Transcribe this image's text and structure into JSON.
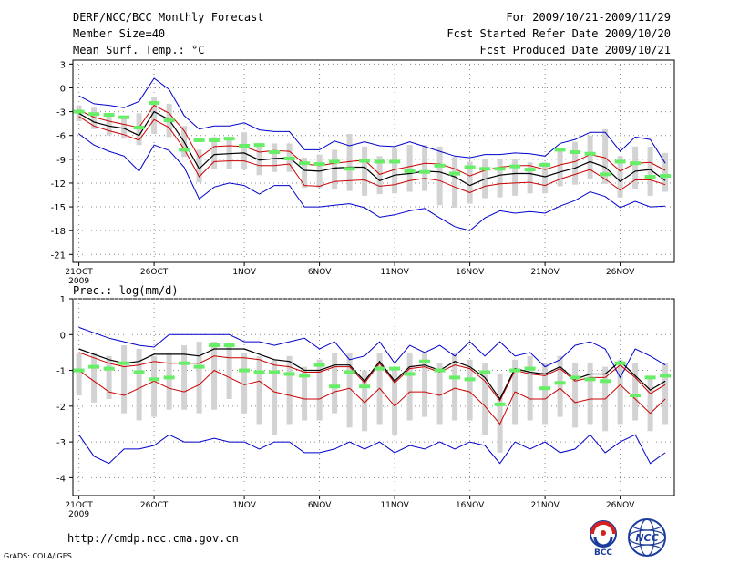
{
  "header": {
    "title": "DERF/NCC/BCC Monthly Forecast",
    "member_size": "Member Size=40",
    "variable": "Mean Surf. Temp.: °C",
    "period": "For 2009/10/21-2009/11/29",
    "started": "Fcst Started Refer Date 2009/10/20",
    "produced": "Fcst Produced Date 2009/10/21"
  },
  "footer": {
    "url": "http://cmdp.ncc.cma.gov.cn",
    "grads": "GrADS: COLA/IGES",
    "logo_left_text": "BCC",
    "logo_right_text": "NCC"
  },
  "colors": {
    "ensemble_envelope": "#0000cc",
    "ensemble_mean": "#000000",
    "climatology": "#cc0000",
    "member_range_bar": "#d3d3d3",
    "observation_marker": "#66ee66",
    "grid": "#888888"
  },
  "chart_data": [
    {
      "type": "line",
      "title": "Mean Surf. Temp.: °C",
      "xlabel": "",
      "ylabel": "°C",
      "ylim": [
        -22,
        3.5
      ],
      "yticks": [
        3,
        0,
        -3,
        -6,
        -9,
        -12,
        -15,
        -18,
        -21
      ],
      "grid": true,
      "x_ticks": [
        {
          "day": 1,
          "label": "21OCT"
        },
        {
          "day": 6,
          "label": "26OCT"
        },
        {
          "day": 12,
          "label": "1NOV"
        },
        {
          "day": 17,
          "label": "6NOV"
        },
        {
          "day": 22,
          "label": "11NOV"
        },
        {
          "day": 27,
          "label": "16NOV"
        },
        {
          "day": 32,
          "label": "21NOV"
        },
        {
          "day": 37,
          "label": "26NOV"
        }
      ],
      "year_label": "2009",
      "xlim": [
        0.6,
        40.6
      ],
      "series": [
        {
          "name": "Ensemble max",
          "style": "envelope",
          "values": [
            -1,
            -2,
            -2.2,
            -2.5,
            -1.7,
            1.2,
            -0.2,
            -3.5,
            -5.2,
            -4.8,
            -4.8,
            -4.4,
            -5.3,
            -5.5,
            -5.5,
            -7.8,
            -7.8,
            -6.7,
            -7.3,
            -6.8,
            -7.3,
            -7.4,
            -6.8,
            -7.4,
            -8,
            -8.6,
            -8.8,
            -8.4,
            -8.4,
            -8.2,
            -8.3,
            -8.6,
            -7,
            -6.5,
            -5.6,
            -5.6,
            -8,
            -6.2,
            -6.5,
            -9.5
          ]
        },
        {
          "name": "Ensemble mean",
          "style": "mean",
          "values": [
            -3.2,
            -4.3,
            -4.8,
            -5.1,
            -6,
            -3,
            -4,
            -6.8,
            -10.2,
            -8.4,
            -8.3,
            -8.2,
            -9.1,
            -8.9,
            -8.8,
            -10.4,
            -10.5,
            -10.1,
            -10,
            -10,
            -11.7,
            -11,
            -10.8,
            -10.5,
            -10.6,
            -11.2,
            -12.3,
            -11.5,
            -11,
            -10.8,
            -10.8,
            -11.2,
            -10.6,
            -10.1,
            -9.3,
            -10,
            -11.8,
            -10.5,
            -10.3,
            -11.7
          ]
        },
        {
          "name": "Climatology",
          "style": "clim",
          "values": [
            -2.8,
            -3.7,
            -4.2,
            -4.6,
            -5,
            -2.2,
            -3.2,
            -5.4,
            -8.8,
            -7.4,
            -7.3,
            -7.4,
            -8.1,
            -7.9,
            -8,
            -9.6,
            -9.8,
            -9.5,
            -9.3,
            -9.1,
            -10.9,
            -10.3,
            -9.9,
            -9.5,
            -9.6,
            -10.2,
            -11.1,
            -10.4,
            -10,
            -9.8,
            -9.8,
            -10.3,
            -9.7,
            -9.3,
            -8.4,
            -8.8,
            -10.5,
            -9.5,
            -9.4,
            -10.4
          ]
        },
        {
          "name": "Climatology lower",
          "style": "clim",
          "values": [
            -3.6,
            -4.8,
            -5.4,
            -5.9,
            -6.6,
            -4,
            -5,
            -7.7,
            -11.2,
            -9.3,
            -9.2,
            -9.2,
            -9.8,
            -9.8,
            -9.6,
            -12.3,
            -12.4,
            -11.8,
            -11.7,
            -11.6,
            -12.4,
            -12.2,
            -11.7,
            -11.4,
            -11.7,
            -12.5,
            -13.2,
            -12.4,
            -12.1,
            -12,
            -11.9,
            -12.3,
            -11.5,
            -10.9,
            -10.3,
            -11.5,
            -12.9,
            -11.6,
            -11.6,
            -12.2
          ]
        },
        {
          "name": "Ensemble min",
          "style": "envelope",
          "values": [
            -5.8,
            -7.2,
            -8,
            -8.6,
            -10.5,
            -7.2,
            -7.9,
            -10,
            -14,
            -12.5,
            -12,
            -12.3,
            -13.4,
            -12.3,
            -12.3,
            -15,
            -15,
            -14.8,
            -14.6,
            -15.1,
            -16.3,
            -16,
            -15.5,
            -15.2,
            -16.4,
            -17.5,
            -18,
            -16.4,
            -15.5,
            -15.8,
            -15.6,
            -15.8,
            -14.9,
            -14.2,
            -13.1,
            -13.7,
            -15.1,
            -14.3,
            -15,
            -14.9
          ]
        },
        {
          "name": "Member range high",
          "style": "bar_top",
          "values": [
            -2.2,
            -2.5,
            -3.2,
            -3.8,
            -3.2,
            -1.2,
            -2,
            -4.8,
            -7.8,
            -6.2,
            -6.5,
            -5.6,
            -7,
            -7,
            -7,
            -8.8,
            -8.4,
            -7.8,
            -5.8,
            -7.4,
            -8.6,
            -7.6,
            -7.2,
            -7.2,
            -7.4,
            -8.7,
            -9.3,
            -9,
            -9,
            -9,
            -9.4,
            -9.4,
            -7.7,
            -6.8,
            -6,
            -5.2,
            -8.6,
            -7.4,
            -7.4,
            -8.2
          ]
        },
        {
          "name": "Member range low",
          "style": "bar_bottom",
          "values": [
            -4.2,
            -5.2,
            -6,
            -6.4,
            -7.2,
            -5.8,
            -6.2,
            -8.7,
            -11.9,
            -10.2,
            -10.2,
            -10.3,
            -11,
            -10.6,
            -10.6,
            -12.6,
            -12.6,
            -12.8,
            -13,
            -13.6,
            -13.4,
            -13.3,
            -13.1,
            -13,
            -14.8,
            -15.1,
            -14.6,
            -13.9,
            -13.8,
            -13.6,
            -13.3,
            -13.3,
            -12.4,
            -12.2,
            -11.5,
            -12.1,
            -13.8,
            -12.8,
            -13.6,
            -13.1
          ]
        },
        {
          "name": "Observed",
          "style": "obs",
          "values": [
            -3,
            -3.3,
            -3.4,
            -3.7,
            -5,
            -1.9,
            -4.1,
            -7.8,
            -6.6,
            -6.6,
            -6.4,
            -7.3,
            -7.2,
            -8.1,
            -8.9,
            -9.5,
            -9.6,
            -9.3,
            -10.2,
            -9.2,
            -9.3,
            -9.3,
            -10.5,
            -10.6,
            -9.8,
            -10.8,
            -10,
            -10.2,
            -10.2,
            -9.9,
            -10.3,
            -9.7,
            -7.8,
            -8.1,
            -8.3,
            -10.9,
            -9.3,
            -9.5,
            -11.2,
            -11.1
          ]
        }
      ]
    },
    {
      "type": "line",
      "title": "Prec.: log(mm/d)",
      "xlabel": "",
      "ylabel": "log(mm/d)",
      "ylim": [
        -4.5,
        1
      ],
      "yticks": [
        1,
        0,
        -1,
        -2,
        -3,
        -4
      ],
      "grid": true,
      "x_ticks": [
        {
          "day": 1,
          "label": "21OCT"
        },
        {
          "day": 6,
          "label": "26OCT"
        },
        {
          "day": 12,
          "label": "1NOV"
        },
        {
          "day": 17,
          "label": "6NOV"
        },
        {
          "day": 22,
          "label": "11NOV"
        },
        {
          "day": 27,
          "label": "16NOV"
        },
        {
          "day": 32,
          "label": "21NOV"
        },
        {
          "day": 37,
          "label": "26NOV"
        }
      ],
      "year_label": "2009",
      "xlim": [
        0.6,
        40.6
      ],
      "series": [
        {
          "name": "Ensemble max",
          "style": "envelope",
          "values": [
            0.2,
            0.05,
            -0.1,
            -0.2,
            -0.3,
            -0.35,
            0,
            0,
            0,
            0,
            0,
            -0.2,
            -0.2,
            -0.3,
            -0.2,
            -0.1,
            -0.4,
            -0.2,
            -0.7,
            -0.6,
            -0.2,
            -0.8,
            -0.3,
            -0.5,
            -0.3,
            -0.6,
            -0.2,
            -0.6,
            -0.2,
            -0.6,
            -0.5,
            -0.9,
            -0.7,
            -0.3,
            -0.2,
            -0.4,
            -1.2,
            -0.4,
            -0.6,
            -0.85
          ]
        },
        {
          "name": "Ensemble mean",
          "style": "mean",
          "values": [
            -0.4,
            -0.55,
            -0.7,
            -0.8,
            -0.75,
            -0.55,
            -0.55,
            -0.55,
            -0.6,
            -0.4,
            -0.4,
            -0.4,
            -0.55,
            -0.7,
            -0.75,
            -1,
            -1,
            -0.85,
            -0.85,
            -1.3,
            -0.75,
            -1.3,
            -0.9,
            -0.85,
            -1,
            -0.75,
            -0.9,
            -1.2,
            -1.8,
            -0.95,
            -1.05,
            -1.1,
            -0.9,
            -1.25,
            -1.1,
            -1.1,
            -0.75,
            -1.15,
            -1.55,
            -1.3
          ]
        },
        {
          "name": "Climatology high",
          "style": "clim",
          "values": [
            -0.5,
            -0.65,
            -0.8,
            -0.9,
            -0.85,
            -0.75,
            -0.8,
            -0.8,
            -0.8,
            -0.6,
            -0.65,
            -0.65,
            -0.7,
            -0.85,
            -0.9,
            -1.05,
            -1.05,
            -0.9,
            -0.9,
            -1.35,
            -0.8,
            -1.35,
            -0.95,
            -0.9,
            -1.05,
            -0.85,
            -0.95,
            -1.3,
            -1.85,
            -1,
            -1.1,
            -1.15,
            -0.95,
            -1.3,
            -1.2,
            -1.2,
            -0.85,
            -1.2,
            -1.65,
            -1.4
          ]
        },
        {
          "name": "Climatology low",
          "style": "clim",
          "values": [
            -1,
            -1.3,
            -1.6,
            -1.7,
            -1.5,
            -1.3,
            -1.5,
            -1.6,
            -1.4,
            -1,
            -1.2,
            -1.4,
            -1.3,
            -1.6,
            -1.7,
            -1.8,
            -1.8,
            -1.6,
            -1.5,
            -1.9,
            -1.5,
            -2,
            -1.6,
            -1.6,
            -1.7,
            -1.5,
            -1.6,
            -2,
            -2.5,
            -1.6,
            -1.8,
            -1.8,
            -1.5,
            -1.9,
            -1.8,
            -1.8,
            -1.4,
            -1.8,
            -2.2,
            -1.8
          ]
        },
        {
          "name": "Ensemble min",
          "style": "envelope",
          "values": [
            -2.8,
            -3.4,
            -3.6,
            -3.2,
            -3.2,
            -3.1,
            -2.8,
            -3,
            -3,
            -2.9,
            -3,
            -3,
            -3.2,
            -3,
            -3,
            -3.3,
            -3.3,
            -3.2,
            -3,
            -3.2,
            -3,
            -3.3,
            -3.1,
            -3.2,
            -3,
            -3.2,
            -3,
            -3.1,
            -3.6,
            -3,
            -3.2,
            -3,
            -3.3,
            -3.2,
            -2.8,
            -3.3,
            -3,
            -2.8,
            -3.6,
            -3.3
          ]
        },
        {
          "name": "Member range high",
          "style": "bar_top",
          "values": [
            -0.5,
            -0.5,
            -0.6,
            -0.3,
            -0.4,
            -0.6,
            -0.5,
            -0.3,
            -0.2,
            -0.2,
            -0.3,
            -0.5,
            -0.6,
            -0.7,
            -0.6,
            -0.9,
            -0.7,
            -0.5,
            -0.5,
            -1,
            -0.5,
            -0.9,
            -0.5,
            -0.5,
            -0.8,
            -0.5,
            -0.7,
            -0.8,
            -1.1,
            -0.7,
            -0.6,
            -0.8,
            -0.6,
            -0.8,
            -0.8,
            -0.9,
            -0.7,
            -0.8,
            -1.2,
            -0.8
          ]
        },
        {
          "name": "Member range low",
          "style": "bar_bottom",
          "values": [
            -1.7,
            -1.9,
            -1.8,
            -2.2,
            -2.4,
            -2.3,
            -2.1,
            -2.1,
            -2.2,
            -2.1,
            -1.8,
            -2.2,
            -2.5,
            -2.8,
            -2.5,
            -2.4,
            -2.4,
            -2.2,
            -2.6,
            -2.7,
            -2.5,
            -2.8,
            -2.4,
            -2.3,
            -2.5,
            -2.4,
            -2.4,
            -2.8,
            -3.3,
            -2.5,
            -2.4,
            -2.5,
            -2.3,
            -2.6,
            -2.5,
            -2.7,
            -2.5,
            -2.4,
            -2.7,
            -2.5
          ]
        },
        {
          "name": "Observed",
          "style": "obs",
          "values": [
            -1,
            -0.9,
            -0.95,
            -0.8,
            -1.05,
            -1.25,
            -1.2,
            -0.8,
            -0.9,
            -0.3,
            -0.3,
            -1,
            -1.05,
            -1.05,
            -1.1,
            -1.15,
            -0.85,
            -1.45,
            -1.05,
            -1.45,
            -0.95,
            -0.95,
            -1.1,
            -0.75,
            -1,
            -1.2,
            -1.25,
            -1.05,
            -1.95,
            -1.0,
            -0.95,
            -1.5,
            -1.35,
            -1.2,
            -1.25,
            -1.3,
            -0.8,
            -1.7,
            -1.2,
            -1.15
          ]
        }
      ]
    }
  ]
}
